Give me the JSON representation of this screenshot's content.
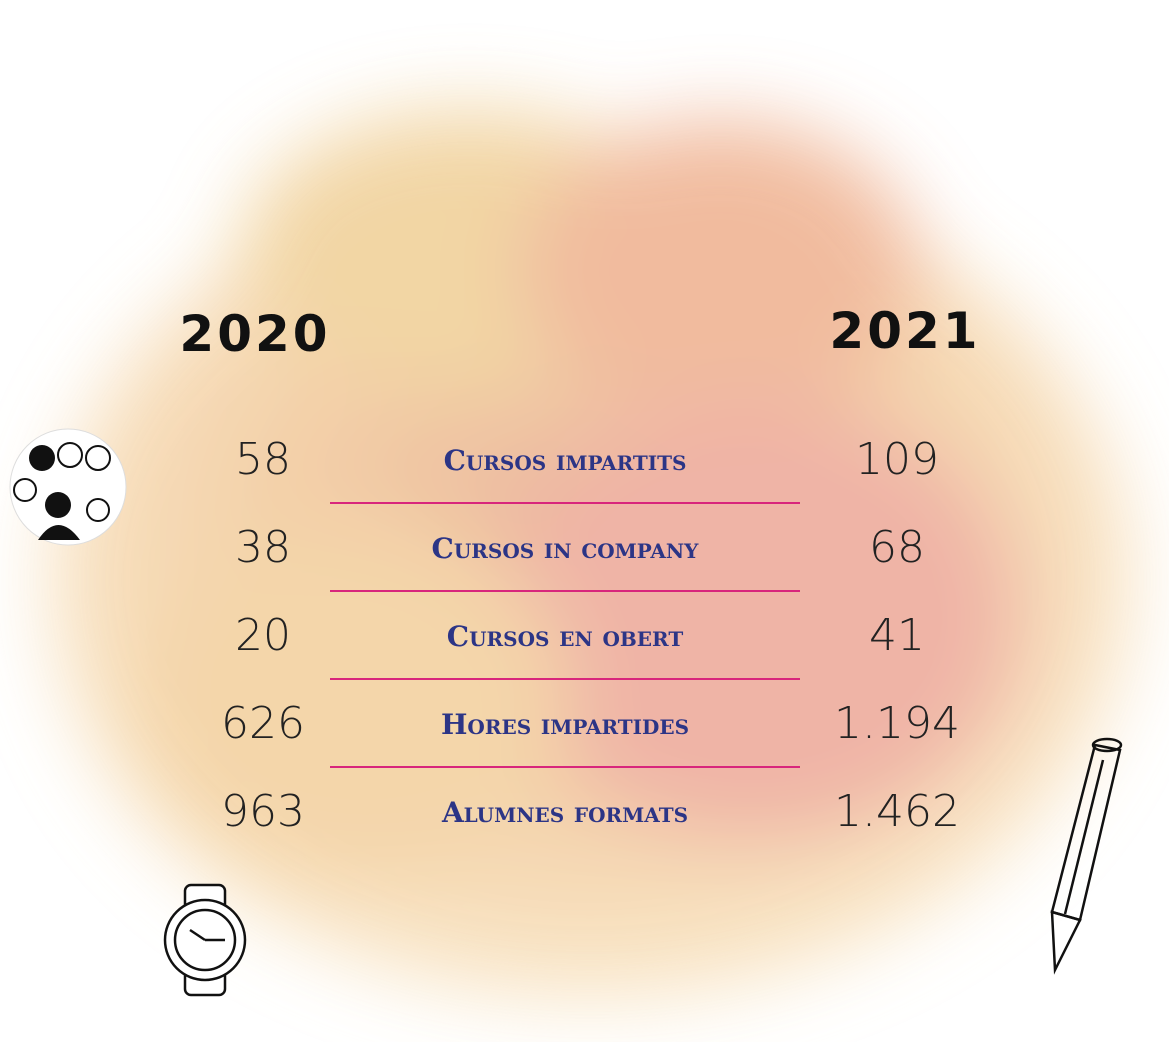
{
  "table": {
    "columns": [
      "2020",
      "2021"
    ],
    "rows": [
      {
        "label": "Cursos impartits",
        "values": [
          "58",
          "109"
        ]
      },
      {
        "label": "Cursos in company",
        "values": [
          "38",
          "68"
        ]
      },
      {
        "label": "Cursos en obert",
        "values": [
          "20",
          "41"
        ]
      },
      {
        "label": "Hores impartides",
        "values": [
          "626",
          "1.194"
        ]
      },
      {
        "label": "Alumnes formats",
        "values": [
          "963",
          "1.462"
        ]
      }
    ]
  }
}
